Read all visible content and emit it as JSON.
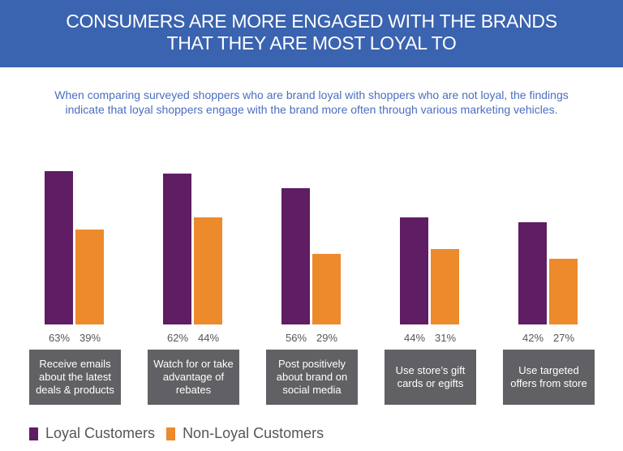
{
  "title_lines": [
    "CONSUMERS ARE MORE ENGAGED WITH THE BRANDS",
    "THAT THEY ARE MOST LOYAL TO"
  ],
  "subtitle_lines": [
    "When comparing surveyed shoppers who are brand loyal with shoppers who are not loyal, the findings",
    "indicate that loyal shoppers engage with the brand more often through various marketing vehicles."
  ],
  "colors": {
    "header": "#3a63b0",
    "loyal": "#5f1d63",
    "non_loyal": "#ec8a2c",
    "category_box": "#616064"
  },
  "chart_data": {
    "type": "bar",
    "categories": [
      "Receive emails about the latest deals & products",
      "Watch for or take advantage of rebates",
      "Post positively about brand on social media",
      "Use store's gift cards or egifts",
      "Use targeted offers from store"
    ],
    "series": [
      {
        "name": "Loyal Customers",
        "values": [
          63,
          62,
          56,
          44,
          42
        ],
        "labels": [
          "63%",
          "62%",
          "56%",
          "44%",
          "42%"
        ]
      },
      {
        "name": "Non-Loyal Customers",
        "values": [
          39,
          44,
          29,
          31,
          27
        ],
        "labels": [
          "39%",
          "44%",
          "29%",
          "31%",
          "27%"
        ]
      }
    ],
    "ylim": [
      0,
      100
    ],
    "grid": false,
    "legend": "bottom-left"
  },
  "category_lines": [
    [
      "Receive emails",
      "about the latest",
      "deals & products"
    ],
    [
      "Watch for or take",
      "advantage of",
      "rebates"
    ],
    [
      "Post positively",
      "about brand on",
      "social media"
    ],
    [
      "Use store’s gift",
      "cards or egifts"
    ],
    [
      "Use targeted",
      "offers from store"
    ]
  ]
}
